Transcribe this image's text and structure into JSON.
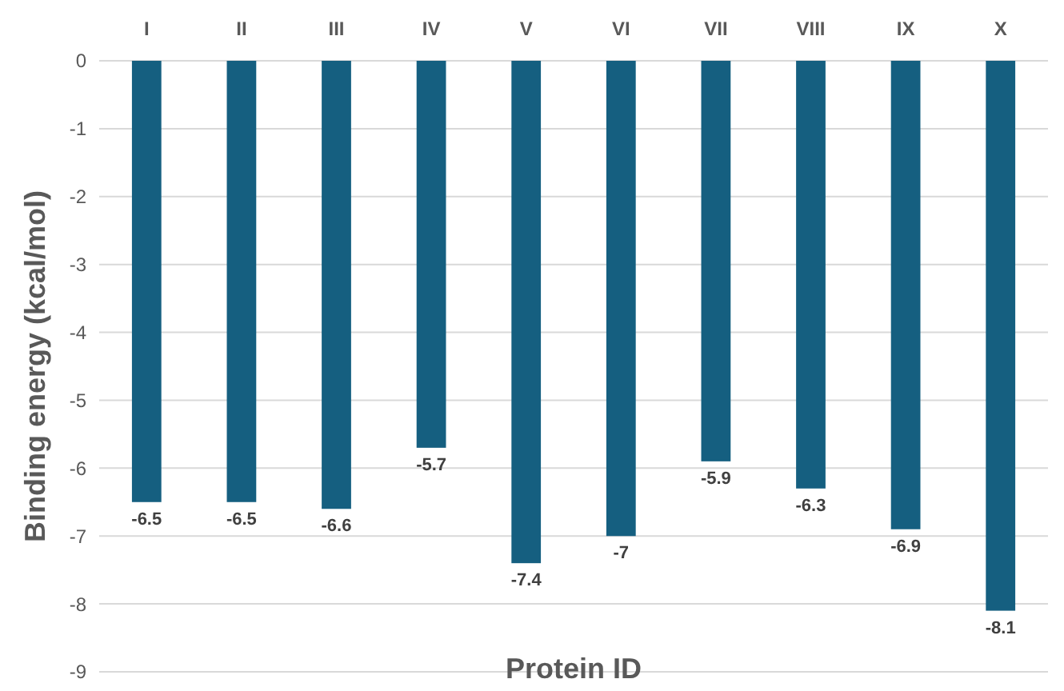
{
  "chart_data": {
    "type": "bar",
    "xlabel": "Protein ID",
    "ylabel": "Binding energy (kcal/mol)",
    "categories": [
      "I",
      "II",
      "III",
      "IV",
      "V",
      "VI",
      "VII",
      "VIII",
      "IX",
      "X"
    ],
    "values": [
      -6.5,
      -6.5,
      -6.6,
      -5.7,
      -7.4,
      -7,
      -5.9,
      -6.3,
      -6.9,
      -8.1
    ],
    "color": "#155f80",
    "ylim": [
      -9,
      0
    ],
    "yticks": [
      -9,
      -8,
      -7,
      -6,
      -5,
      -4,
      -3,
      -2,
      -1,
      0
    ],
    "grid": "y",
    "data_labels": true
  }
}
